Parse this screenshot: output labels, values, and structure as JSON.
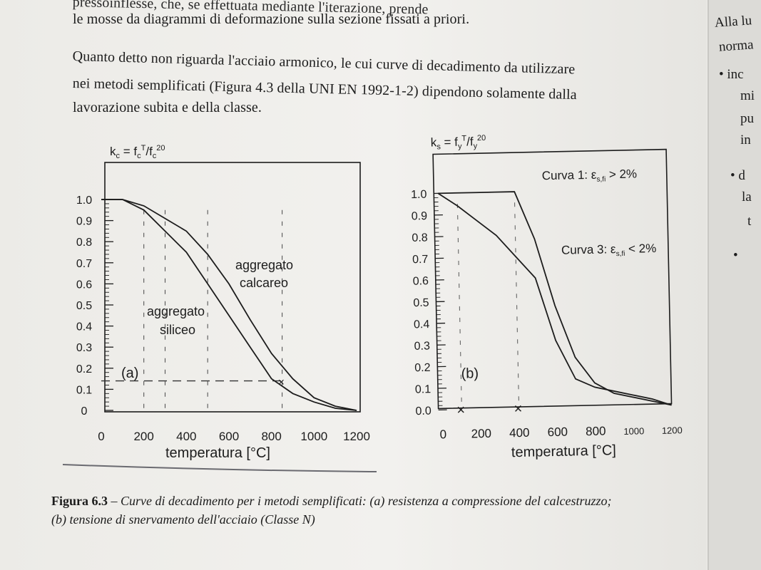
{
  "body_text": {
    "line0": "pressoinflesse, che, se effettuata mediante l'iterazione, prende",
    "line1": "le mosse da diagrammi di deformazione sulla sezione fissati a priori.",
    "line2": "Quanto detto non riguarda l'acciaio armonico, le cui curve di decadimento da utilizzare",
    "line3": "nei metodi semplificati (Figura 4.3 della UNI EN 1992-1-2) dipendono solamente dalla",
    "line4": "lavorazione subita e della classe."
  },
  "side_text": {
    "l0": "Alla lu",
    "l1": "norma",
    "l2": "• inc",
    "l3": "mi",
    "l4": "pu",
    "l5": "in",
    "l6": "• d",
    "l7": "la",
    "l8": "t",
    "l9": "•"
  },
  "caption": {
    "label": "Figura 6.3",
    "text": " – Curve di decadimento per i metodi semplificati: (a) resistenza a compressione del calcestruzzo; (b) tensione di snervamento dell'acciaio (Classe N)"
  },
  "chart_data": [
    {
      "type": "line",
      "panel_label": "(a)",
      "ylabel": "kc = fcT/fc20",
      "xlabel": "temperatura [°C]",
      "xlim": [
        0,
        1200
      ],
      "ylim": [
        0,
        1.0
      ],
      "x_ticks": [
        "0",
        "200",
        "400",
        "600",
        "800",
        "1000",
        "1200"
      ],
      "y_ticks": [
        "0",
        "0.1",
        "0.2",
        "0.3",
        "0.4",
        "0.5",
        "0.6",
        "0.7",
        "0.8",
        "0.9",
        "1.0"
      ],
      "series": [
        {
          "name": "aggregato siliceo",
          "x": [
            0,
            100,
            200,
            300,
            400,
            500,
            600,
            700,
            800,
            900,
            1000,
            1100,
            1200
          ],
          "y": [
            1.0,
            1.0,
            0.95,
            0.85,
            0.75,
            0.6,
            0.45,
            0.3,
            0.15,
            0.08,
            0.04,
            0.01,
            0.0
          ]
        },
        {
          "name": "aggregato calcareo",
          "x": [
            0,
            100,
            200,
            300,
            400,
            500,
            600,
            700,
            800,
            900,
            1000,
            1100,
            1200
          ],
          "y": [
            1.0,
            1.0,
            0.97,
            0.91,
            0.85,
            0.74,
            0.6,
            0.43,
            0.27,
            0.15,
            0.06,
            0.02,
            0.0
          ]
        }
      ],
      "annotations": [
        "aggregato calcareo",
        "aggregato siliceo",
        "(a)"
      ]
    },
    {
      "type": "line",
      "panel_label": "(b)",
      "ylabel": "ks = fyT/fy20",
      "xlabel": "temperatura [°C]",
      "xlim": [
        0,
        1200
      ],
      "ylim": [
        0,
        1.0
      ],
      "x_ticks": [
        "0",
        "200",
        "400",
        "600",
        "800",
        "1000",
        "1200"
      ],
      "y_ticks": [
        "0.0",
        "0.1",
        "0.2",
        "0.3",
        "0.4",
        "0.5",
        "0.6",
        "0.7",
        "0.8",
        "0.9",
        "1.0"
      ],
      "series": [
        {
          "name": "Curva 1: εs,fi > 2%",
          "x": [
            0,
            100,
            200,
            300,
            400,
            500,
            600,
            700,
            800,
            900,
            1000,
            1100,
            1200
          ],
          "y": [
            1.0,
            1.0,
            1.0,
            1.0,
            1.0,
            0.78,
            0.47,
            0.23,
            0.11,
            0.06,
            0.04,
            0.02,
            0.0
          ]
        },
        {
          "name": "Curva 3: εs,fi < 2%",
          "x": [
            0,
            100,
            200,
            300,
            400,
            500,
            600,
            700,
            800,
            900,
            1000,
            1100,
            1200
          ],
          "y": [
            1.0,
            0.94,
            0.87,
            0.8,
            0.7,
            0.6,
            0.31,
            0.13,
            0.09,
            0.07,
            0.05,
            0.03,
            0.0
          ]
        }
      ],
      "annotations": [
        "Curva 1: εs,fi > 2%",
        "Curva 3: εs,fi < 2%",
        "(b)"
      ]
    }
  ],
  "chart_text": {
    "a": {
      "ylabel_k": "k",
      "ylabel_sub": "c",
      "ylabel_rest": " = f",
      "ylabel_sub2": "c",
      "ylabel_sup": "T",
      "ylabel_slash": "/f",
      "ylabel_sub3": "c",
      "ylabel_sup2": "20",
      "calc_1": "aggregato",
      "calc_2": "calcareo",
      "sil_1": "aggregato",
      "sil_2": "siliceo",
      "panel": "(a)",
      "xlabel": "temperatura [°C]"
    },
    "b": {
      "ylabel_k": "k",
      "ylabel_sub": "s",
      "ylabel_rest": " = f",
      "ylabel_sub2": "y",
      "ylabel_sup": "T",
      "ylabel_slash": "/f",
      "ylabel_sub3": "y",
      "ylabel_sup2": "20",
      "c1_main": "Curva 1: ε",
      "c1_sub": "s,fi",
      "c1_tail": " > 2%",
      "c3_main": "Curva 3: ε",
      "c3_sub": "s,fi",
      "c3_tail": " < 2%",
      "panel": "(b)",
      "xlabel": "temperatura [°C]"
    }
  }
}
